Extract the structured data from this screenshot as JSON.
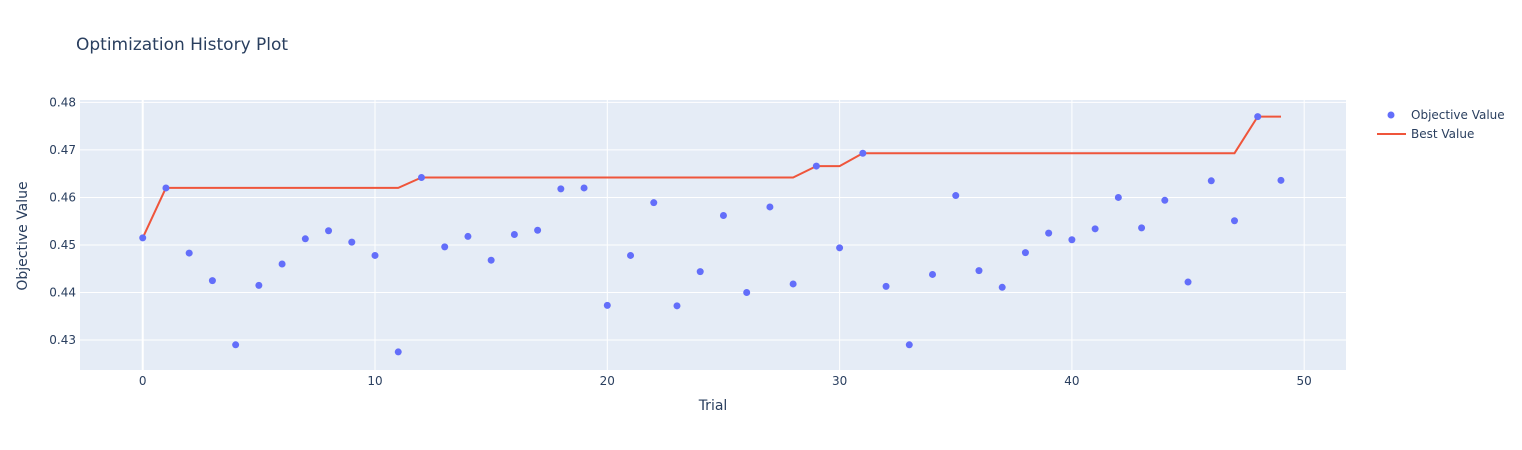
{
  "chart_data": {
    "type": "scatter",
    "title": "Optimization History Plot",
    "xlabel": "Trial",
    "ylabel": "Objective Value",
    "xlim": [
      -2.7,
      51.8
    ],
    "ylim": [
      0.4237,
      0.4805
    ],
    "x_ticks": [
      0,
      10,
      20,
      30,
      40,
      50
    ],
    "y_ticks": [
      0.43,
      0.44,
      0.45,
      0.46,
      0.47,
      0.48
    ],
    "grid": true,
    "legend_position": "top-right",
    "colors": {
      "objective": "#636efa",
      "best": "#ef553b",
      "plot_bg": "#e5ecf6",
      "grid": "#ffffff",
      "text": "#2a3f5f"
    },
    "series": [
      {
        "name": "Objective Value",
        "mode": "markers",
        "x": [
          0,
          1,
          2,
          3,
          4,
          5,
          6,
          7,
          8,
          9,
          10,
          11,
          12,
          13,
          14,
          15,
          16,
          17,
          18,
          19,
          20,
          21,
          22,
          23,
          24,
          25,
          26,
          27,
          28,
          29,
          30,
          31,
          32,
          33,
          34,
          35,
          36,
          37,
          38,
          39,
          40,
          41,
          42,
          43,
          44,
          45,
          46,
          47,
          48,
          49
        ],
        "y": [
          0.4515,
          0.462,
          0.4483,
          0.4425,
          0.429,
          0.4415,
          0.446,
          0.4513,
          0.453,
          0.4506,
          0.4478,
          0.4275,
          0.4642,
          0.4496,
          0.4518,
          0.4468,
          0.4522,
          0.4531,
          0.4618,
          0.462,
          0.4373,
          0.4478,
          0.4589,
          0.4372,
          0.4444,
          0.4562,
          0.44,
          0.458,
          0.4418,
          0.4666,
          0.4494,
          0.4693,
          0.4413,
          0.429,
          0.4438,
          0.4604,
          0.4446,
          0.4411,
          0.4484,
          0.4525,
          0.4511,
          0.4534,
          0.46,
          0.4536,
          0.4594,
          0.4422,
          0.4635,
          0.4551,
          0.477,
          0.4636
        ]
      },
      {
        "name": "Best Value",
        "mode": "lines",
        "x": [
          0,
          1,
          2,
          3,
          4,
          5,
          6,
          7,
          8,
          9,
          10,
          11,
          12,
          13,
          14,
          15,
          16,
          17,
          18,
          19,
          20,
          21,
          22,
          23,
          24,
          25,
          26,
          27,
          28,
          29,
          30,
          31,
          32,
          33,
          34,
          35,
          36,
          37,
          38,
          39,
          40,
          41,
          42,
          43,
          44,
          45,
          46,
          47,
          48,
          49
        ],
        "y": [
          0.4515,
          0.462,
          0.462,
          0.462,
          0.462,
          0.462,
          0.462,
          0.462,
          0.462,
          0.462,
          0.462,
          0.462,
          0.4642,
          0.4642,
          0.4642,
          0.4642,
          0.4642,
          0.4642,
          0.4642,
          0.4642,
          0.4642,
          0.4642,
          0.4642,
          0.4642,
          0.4642,
          0.4642,
          0.4642,
          0.4642,
          0.4642,
          0.4666,
          0.4666,
          0.4693,
          0.4693,
          0.4693,
          0.4693,
          0.4693,
          0.4693,
          0.4693,
          0.4693,
          0.4693,
          0.4693,
          0.4693,
          0.4693,
          0.4693,
          0.4693,
          0.4693,
          0.4693,
          0.4693,
          0.477,
          0.477
        ]
      }
    ]
  }
}
